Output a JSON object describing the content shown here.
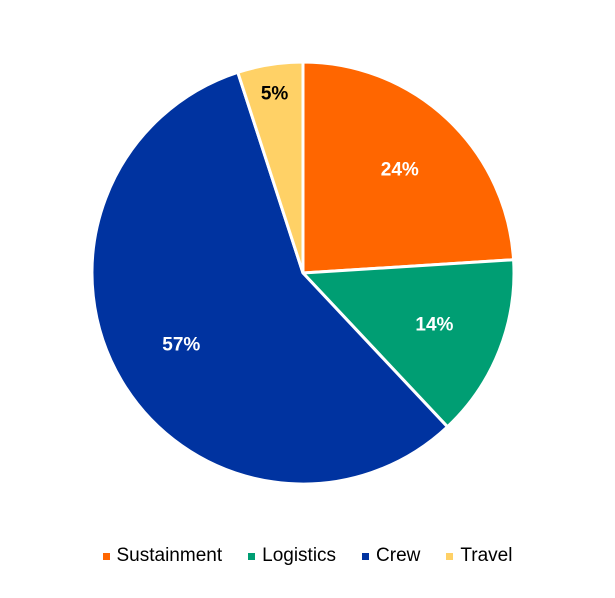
{
  "chart_data": {
    "type": "pie",
    "title": "",
    "categories": [
      "Sustainment",
      "Logistics",
      "Crew",
      "Travel"
    ],
    "values": [
      24,
      14,
      57,
      5
    ],
    "value_labels": [
      "24%",
      "14%",
      "57%",
      "5%"
    ],
    "colors": [
      "#FF6600",
      "#009E73",
      "#0033A0",
      "#FFD166"
    ],
    "label_colors": [
      "#ffffff",
      "#ffffff",
      "#ffffff",
      "#000000"
    ],
    "start_angle_deg": 0,
    "direction": "clockwise",
    "legend": {
      "position": "bottom",
      "entries": [
        {
          "label": "Sustainment",
          "color": "#FF6600"
        },
        {
          "label": "Logistics",
          "color": "#009E73"
        },
        {
          "label": "Crew",
          "color": "#0033A0"
        },
        {
          "label": "Travel",
          "color": "#FFD166"
        }
      ]
    }
  }
}
